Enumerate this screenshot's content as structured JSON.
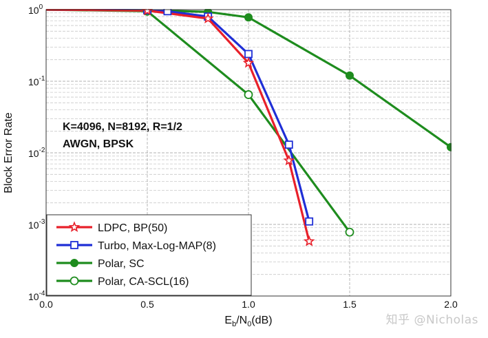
{
  "chart_data": {
    "type": "line",
    "title": "",
    "xlabel_main": "E",
    "xlabel_sub1": "b",
    "xlabel_mid": "/N",
    "xlabel_sub2": "0",
    "xlabel_end": "(dB)",
    "ylabel": "Block Error Rate",
    "xlim": [
      0.0,
      2.0
    ],
    "ylim": [
      0.0001,
      1
    ],
    "yscale": "log",
    "grid": true,
    "x_ticks": [
      "0.0",
      "0.5",
      "1.0",
      "1.5",
      "2.0"
    ],
    "y_ticks": [
      {
        "base": "10",
        "exp": "0"
      },
      {
        "base": "10",
        "exp": "-1"
      },
      {
        "base": "10",
        "exp": "-2"
      },
      {
        "base": "10",
        "exp": "-3"
      },
      {
        "base": "10",
        "exp": "-4"
      }
    ],
    "annotation": [
      "K=4096, N=8192, R=1/2",
      "AWGN, BPSK"
    ],
    "legend_position": "bottom-left",
    "series": [
      {
        "name": "LDPC, BP(50)",
        "color": "#e8202a",
        "marker": "star",
        "x": [
          0.0,
          0.5,
          0.8,
          1.0,
          1.2,
          1.3
        ],
        "y": [
          1.0,
          0.97,
          0.75,
          0.18,
          0.0078,
          0.00058
        ]
      },
      {
        "name": "Turbo, Max-Log-MAP(8)",
        "color": "#1f2fd6",
        "marker": "square",
        "x": [
          0.0,
          0.5,
          0.6,
          0.8,
          1.0,
          1.2,
          1.3
        ],
        "y": [
          1.0,
          0.98,
          0.95,
          0.8,
          0.24,
          0.013,
          0.0011
        ]
      },
      {
        "name": "Polar, SC",
        "color": "#1e8c1e",
        "marker": "filled-circle",
        "x": [
          0.0,
          0.5,
          0.8,
          1.0,
          1.5,
          2.0
        ],
        "y": [
          1.0,
          0.98,
          0.93,
          0.78,
          0.12,
          0.012
        ]
      },
      {
        "name": "Polar, CA-SCL(16)",
        "color": "#1e8c1e",
        "marker": "open-circle",
        "x": [
          0.0,
          0.5,
          1.0,
          1.5
        ],
        "y": [
          1.0,
          0.95,
          0.065,
          0.00078
        ]
      }
    ]
  },
  "watermark": "知乎 @Nicholas"
}
